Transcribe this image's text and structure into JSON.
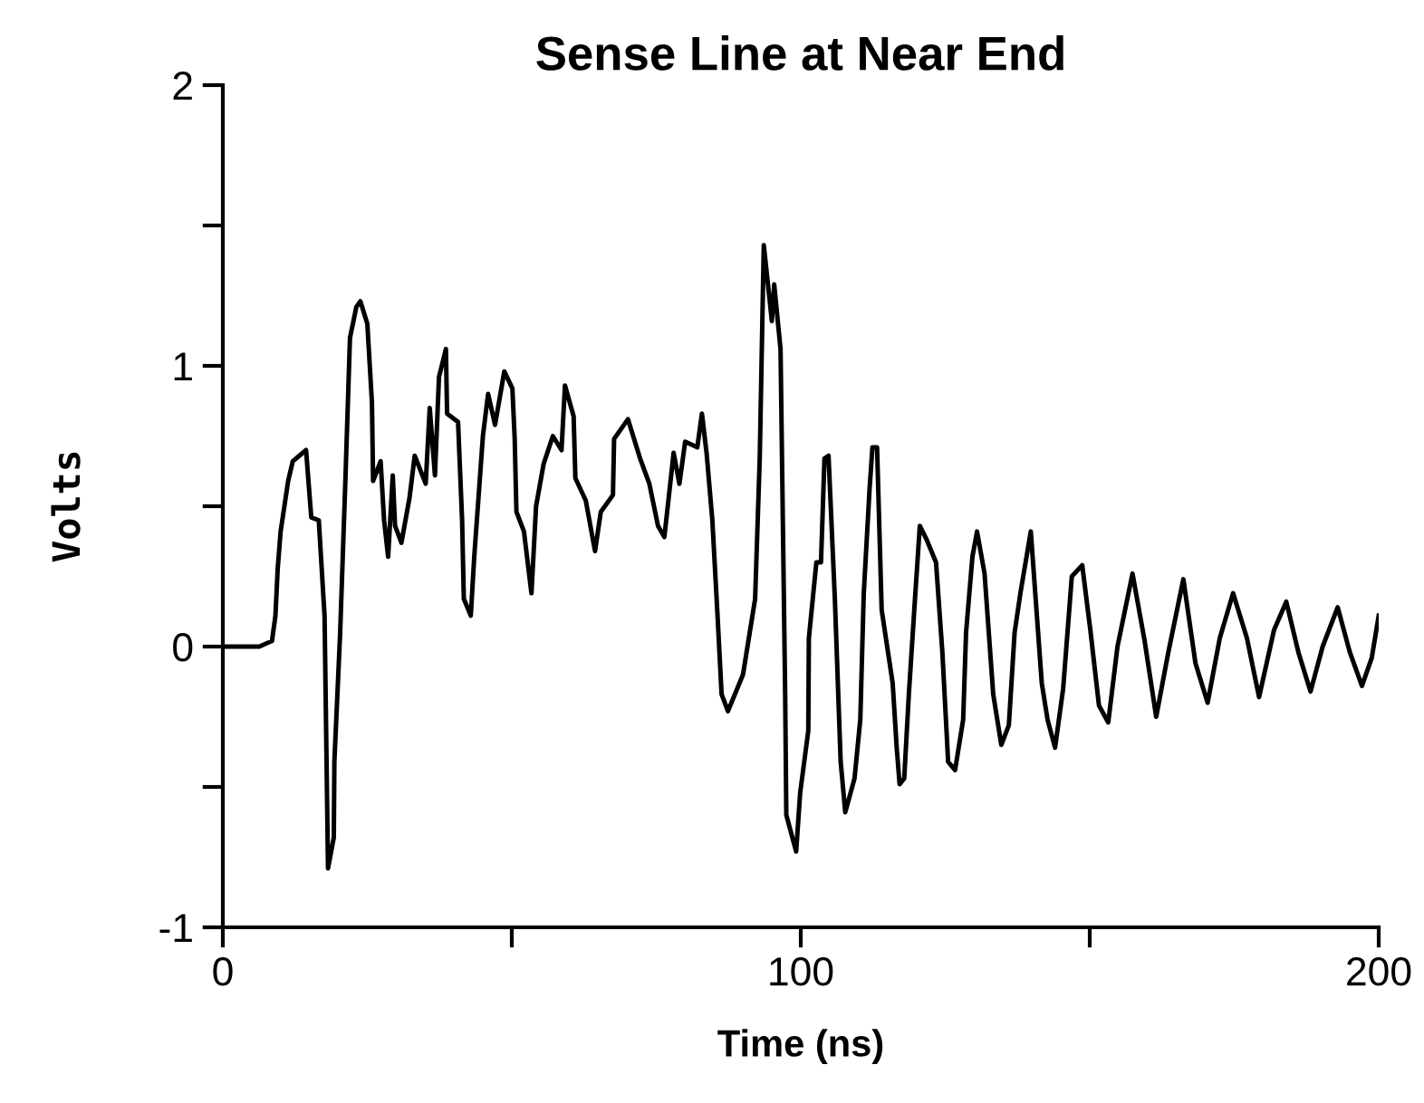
{
  "chart_data": {
    "type": "line",
    "title": "Sense Line at Near End",
    "xlabel": "Time (ns)",
    "ylabel": "Volts",
    "xlim": [
      0,
      200
    ],
    "ylim": [
      -1,
      2
    ],
    "xticks": [
      0,
      {
        "value": 50,
        "label": null
      },
      100,
      {
        "value": 150,
        "label": null
      },
      200
    ],
    "yticks": [
      -1,
      {
        "value": -0.5,
        "label": null
      },
      0,
      {
        "value": 0.5,
        "label": null
      },
      1,
      {
        "value": 1.5,
        "label": null
      },
      2
    ],
    "grid": false,
    "legend": false,
    "marker": "none",
    "line_style": "solid",
    "series": [
      {
        "color": "#000000",
        "x": [
          0,
          6.3,
          8.5,
          9.1,
          9.5,
          10.0,
          11.3,
          12.1,
          14.4,
          15.3,
          16.6,
          17.6,
          18.2,
          19.2,
          19.3,
          20.3,
          21.2,
          22.0,
          23.1,
          23.8,
          25.0,
          25.8,
          26.0,
          27.3,
          27.9,
          28.6,
          29.4,
          29.8,
          30.9,
          32.3,
          33.2,
          35.1,
          35.8,
          36.7,
          37.4,
          38.6,
          38.8,
          40.7,
          41.4,
          41.7,
          42.9,
          43.5,
          45.0,
          45.9,
          47.1,
          48.7,
          50.1,
          50.5,
          50.8,
          52.1,
          53.4,
          54.2,
          55.5,
          57.1,
          58.6,
          59.2,
          60.7,
          61.0,
          62.8,
          64.4,
          65.4,
          67.5,
          67.7,
          70.1,
          72.2,
          73.8,
          75.3,
          76.4,
          78.0,
          79.0,
          80.0,
          82.1,
          82.9,
          83.7,
          84.7,
          85.6,
          86.3,
          87.4,
          90.0,
          92.1,
          92.9,
          93.6,
          95.0,
          95.4,
          96.5,
          97.3,
          97.5,
          99.2,
          99.9,
          101.3,
          101.4,
          102.7,
          103.5,
          104.1,
          104.8,
          105.9,
          106.9,
          107.7,
          109.3,
          110.3,
          110.9,
          111.9,
          112.4,
          113.2,
          114.0,
          115.9,
          116.6,
          117.1,
          117.9,
          118.7,
          119.7,
          120.6,
          121.8,
          123.4,
          124.5,
          125.5,
          126.7,
          128.1,
          128.6,
          129.7,
          130.5,
          131.8,
          133.3,
          134.7,
          136.0,
          137.0,
          138.0,
          139.8,
          141.7,
          142.7,
          144.0,
          145.4,
          146.9,
          148.7,
          150.1,
          151.6,
          153.2,
          154.8,
          157.4,
          159.5,
          161.5,
          163.6,
          166.2,
          168.3,
          170.4,
          172.5,
          174.8,
          177.2,
          179.3,
          181.9,
          184.0,
          186.1,
          188.2,
          190.3,
          192.9,
          195.0,
          197.1,
          198.8,
          200
        ],
        "values": [
          0,
          0,
          0.02,
          0.11,
          0.28,
          0.41,
          0.59,
          0.66,
          0.7,
          0.46,
          0.45,
          0.11,
          -0.79,
          -0.68,
          -0.41,
          0.05,
          0.59,
          1.1,
          1.21,
          1.23,
          1.15,
          0.87,
          0.59,
          0.66,
          0.45,
          0.32,
          0.61,
          0.43,
          0.37,
          0.53,
          0.68,
          0.58,
          0.85,
          0.61,
          0.96,
          1.06,
          0.83,
          0.8,
          0.45,
          0.17,
          0.11,
          0.32,
          0.75,
          0.9,
          0.79,
          0.98,
          0.92,
          0.74,
          0.48,
          0.41,
          0.19,
          0.5,
          0.65,
          0.75,
          0.7,
          0.93,
          0.82,
          0.6,
          0.52,
          0.34,
          0.48,
          0.54,
          0.74,
          0.81,
          0.67,
          0.58,
          0.43,
          0.39,
          0.69,
          0.58,
          0.73,
          0.71,
          0.83,
          0.69,
          0.45,
          0.11,
          -0.17,
          -0.23,
          -0.1,
          0.17,
          0.67,
          1.43,
          1.16,
          1.29,
          1.06,
          -0.17,
          -0.6,
          -0.73,
          -0.52,
          -0.3,
          0.03,
          0.3,
          0.3,
          0.67,
          0.68,
          0.17,
          -0.41,
          -0.59,
          -0.47,
          -0.26,
          0.19,
          0.56,
          0.71,
          0.71,
          0.13,
          -0.13,
          -0.36,
          -0.49,
          -0.47,
          -0.17,
          0.15,
          0.43,
          0.38,
          0.3,
          -0.02,
          -0.41,
          -0.44,
          -0.26,
          0.05,
          0.32,
          0.41,
          0.26,
          -0.17,
          -0.35,
          -0.28,
          0.05,
          0.19,
          0.41,
          -0.13,
          -0.26,
          -0.36,
          -0.15,
          0.25,
          0.29,
          0.06,
          -0.21,
          -0.27,
          0.0,
          0.26,
          0.02,
          -0.25,
          -0.02,
          0.24,
          -0.06,
          -0.2,
          0.03,
          0.19,
          0.03,
          -0.18,
          0.06,
          0.16,
          -0.02,
          -0.16,
          0.0,
          0.14,
          -0.02,
          -0.14,
          -0.04,
          0.11
        ]
      }
    ]
  }
}
